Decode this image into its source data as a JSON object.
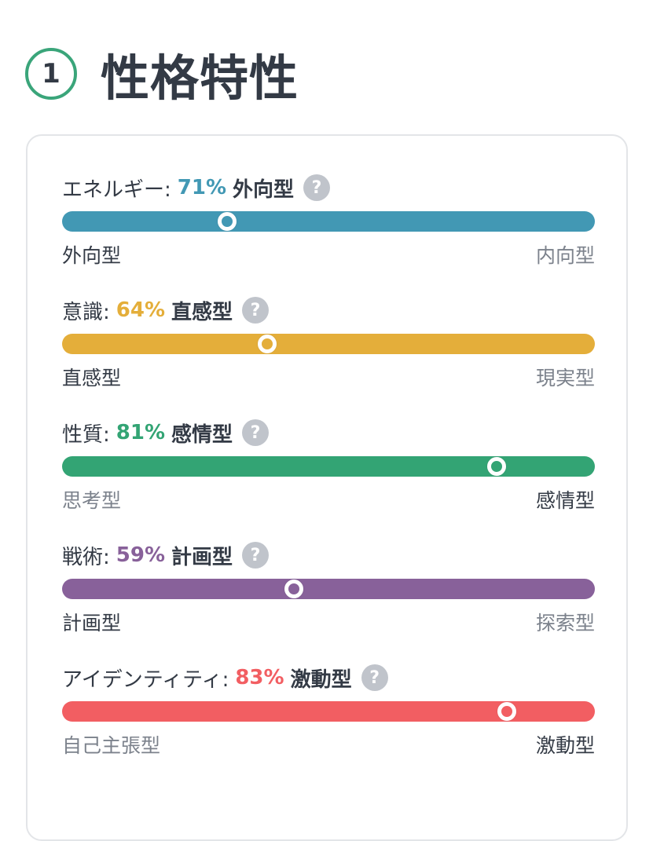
{
  "header": {
    "step_number": "1",
    "title": "性格特性"
  },
  "traits": [
    {
      "name": "エネルギー:",
      "percent": "71%",
      "type": "外向型",
      "left_label": "外向型",
      "right_label": "内向型",
      "active_side": "left",
      "thumb_position": 0.31,
      "color": "#4298b4"
    },
    {
      "name": "意識:",
      "percent": "64%",
      "type": "直感型",
      "left_label": "直感型",
      "right_label": "現実型",
      "active_side": "left",
      "thumb_position": 0.385,
      "color": "#e4ae3a"
    },
    {
      "name": "性質:",
      "percent": "81%",
      "type": "感情型",
      "left_label": "思考型",
      "right_label": "感情型",
      "active_side": "right",
      "thumb_position": 0.815,
      "color": "#33a474"
    },
    {
      "name": "戦術:",
      "percent": "59%",
      "type": "計画型",
      "left_label": "計画型",
      "right_label": "探索型",
      "active_side": "left",
      "thumb_position": 0.435,
      "color": "#88619a"
    },
    {
      "name": "アイデンティティ:",
      "percent": "83%",
      "type": "激動型",
      "left_label": "自己主張型",
      "right_label": "激動型",
      "active_side": "right",
      "thumb_position": 0.835,
      "color": "#f25e62"
    }
  ],
  "help_icon_glyph": "?"
}
